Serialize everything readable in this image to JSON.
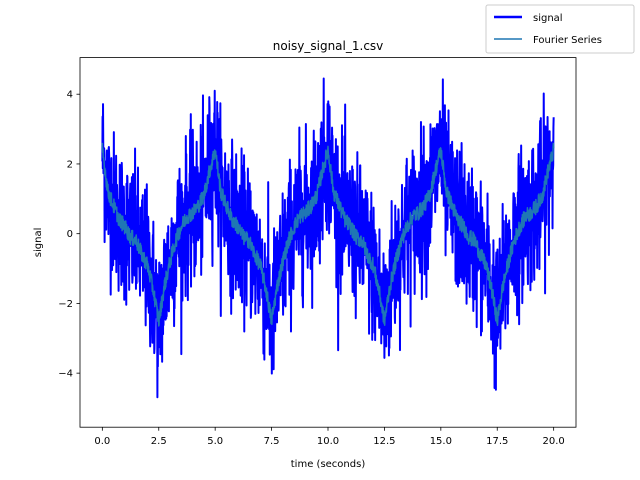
{
  "chart_data": {
    "type": "line",
    "title": "noisy_signal_1.csv",
    "xlabel": "time (seconds)",
    "ylabel": "signal",
    "xlim": [
      -0.99,
      20.99
    ],
    "ylim": [
      -5.55,
      5.05
    ],
    "xticks": [
      0.0,
      2.5,
      5.0,
      7.5,
      10.0,
      12.5,
      15.0,
      17.5,
      20.0
    ],
    "xtick_labels": [
      "0.0",
      "2.5",
      "5.0",
      "7.5",
      "10.0",
      "12.5",
      "15.0",
      "17.5",
      "20.0"
    ],
    "yticks": [
      -4,
      -2,
      0,
      2,
      4
    ],
    "ytick_labels": [
      "−4",
      "−2",
      "0",
      "2",
      "4"
    ],
    "grid": false,
    "legend_position": "top-right-outside",
    "legend": [
      "signal",
      "Fourier Series"
    ],
    "series": [
      {
        "name": "signal",
        "color": "#0000ff",
        "x_start": 0.0,
        "x_end": 20.0,
        "description": "noisy periodic signal, period 5 s"
      },
      {
        "name": "Fourier Series",
        "color": "#1f77b4",
        "x": [
          0.0,
          0.25,
          0.5,
          0.75,
          1.0,
          1.25,
          1.5,
          1.75,
          2.0,
          2.25,
          2.5,
          2.75,
          3.0,
          3.25,
          3.5,
          3.75,
          4.0,
          4.25,
          4.5,
          4.75,
          5.0
        ],
        "y": [
          2.4,
          1.2,
          0.8,
          0.4,
          0.2,
          -0.1,
          -0.2,
          -0.6,
          -0.9,
          -1.6,
          -2.5,
          -1.5,
          -0.8,
          -0.2,
          0.2,
          0.5,
          0.6,
          0.8,
          1.1,
          1.8,
          2.4
        ],
        "period": 5.0
      }
    ]
  }
}
